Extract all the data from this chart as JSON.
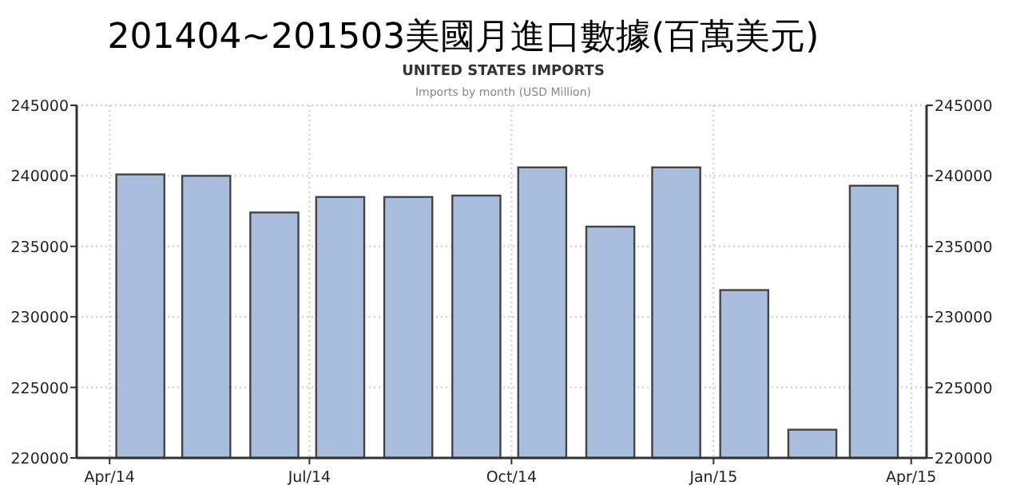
{
  "chart_data": {
    "type": "bar",
    "title": "201404~201503美國月進口數據(百萬美元)",
    "subtitle": "UNITED STATES IMPORTS",
    "annotations": [
      "Imports by month (USD Million)"
    ],
    "x": [
      "2014-04-15",
      "2014-05-15",
      "2014-06-15",
      "2014-07-15",
      "2014-08-15",
      "2014-09-15",
      "2014-10-15",
      "2014-11-15",
      "2014-12-15",
      "2015-01-15",
      "2015-02-15",
      "2015-03-15"
    ],
    "series": [
      {
        "color": "#a9bedc",
        "values": [
          240100,
          240000,
          237400,
          238500,
          238500,
          238600,
          240600,
          236400,
          240600,
          231900,
          222000,
          239300
        ]
      }
    ],
    "xlim": [
      "2014-03-17",
      "2015-04-08"
    ],
    "xticks": [
      {
        "value": "2014-04",
        "label": "Apr/14"
      },
      {
        "value": "2014-07",
        "label": "Jul/14"
      },
      {
        "value": "2014-10",
        "label": "Oct/14"
      },
      {
        "value": "2015-01",
        "label": "Jan/15"
      },
      {
        "value": "2015-04",
        "label": "Apr/15"
      }
    ],
    "ylim": [
      220000,
      245000
    ],
    "yticks": [
      220000,
      225000,
      230000,
      235000,
      240000,
      245000
    ],
    "y2lim": [
      220000,
      245000
    ],
    "y2ticks": [
      220000,
      225000,
      230000,
      235000,
      240000,
      245000
    ],
    "grid": true
  }
}
